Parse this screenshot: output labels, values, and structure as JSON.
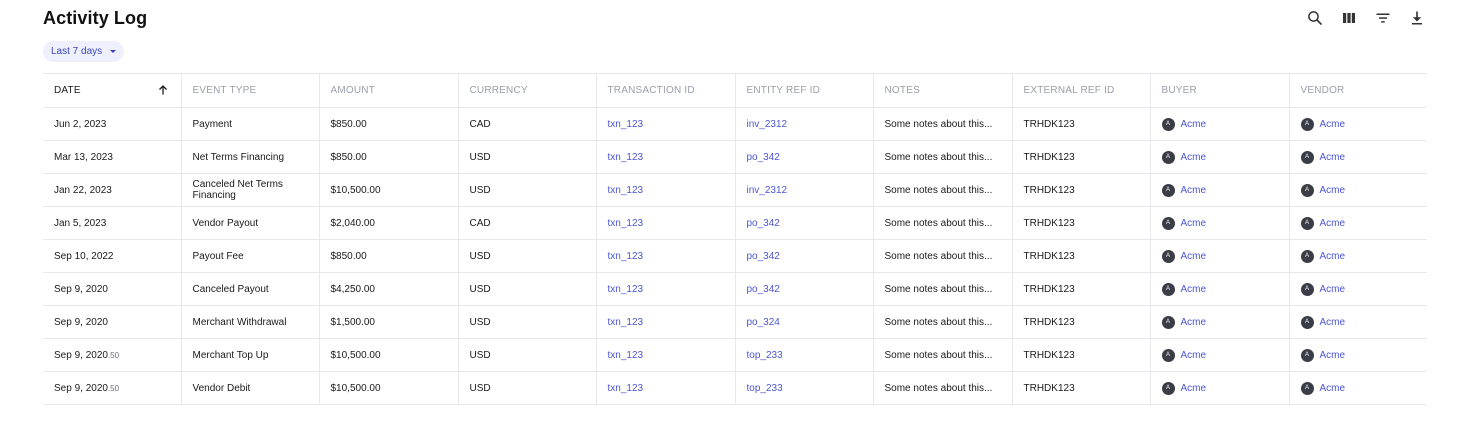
{
  "header": {
    "title": "Activity Log"
  },
  "toolbar": {
    "icons": [
      "search-icon",
      "columns-icon",
      "filter-icon",
      "download-icon"
    ]
  },
  "filter": {
    "label": "Last 7 days"
  },
  "columns": [
    "DATE",
    "EVENT TYPE",
    "AMOUNT",
    "CURRENCY",
    "TRANSACTION ID",
    "ENTITY REF ID",
    "NOTES",
    "EXTERNAL REF ID",
    "BUYER",
    "VENDOR"
  ],
  "rows": [
    {
      "date": "Jun 2, 2023",
      "date_suffix": "",
      "event": "Payment",
      "amount": "$850.00",
      "currency": "CAD",
      "txn": "txn_123",
      "entity": "inv_2312",
      "notes": "Some notes about this...",
      "ext": "TRHDK123",
      "buyer": "Acme",
      "buyer_initial": "A",
      "vendor": "Acme",
      "vendor_initial": "A"
    },
    {
      "date": "Mar 13, 2023",
      "date_suffix": "",
      "event": "Net Terms Financing",
      "amount": "$850.00",
      "currency": "USD",
      "txn": "txn_123",
      "entity": "po_342",
      "notes": "Some notes about this...",
      "ext": "TRHDK123",
      "buyer": "Acme",
      "buyer_initial": "A",
      "vendor": "Acme",
      "vendor_initial": "A"
    },
    {
      "date": "Jan 22, 2023",
      "date_suffix": "",
      "event": "Canceled Net Terms Financing",
      "amount": "$10,500.00",
      "currency": "USD",
      "txn": "txn_123",
      "entity": "inv_2312",
      "notes": "Some notes about this...",
      "ext": "TRHDK123",
      "buyer": "Acme",
      "buyer_initial": "A",
      "vendor": "Acme",
      "vendor_initial": "A"
    },
    {
      "date": "Jan 5, 2023",
      "date_suffix": "",
      "event": "Vendor Payout",
      "amount": "$2,040.00",
      "currency": "CAD",
      "txn": "txn_123",
      "entity": "po_342",
      "notes": "Some notes about this...",
      "ext": "TRHDK123",
      "buyer": "Acme",
      "buyer_initial": "A",
      "vendor": "Acme",
      "vendor_initial": "A"
    },
    {
      "date": "Sep 10, 2022",
      "date_suffix": "",
      "event": "Payout Fee",
      "amount": "$850.00",
      "currency": "USD",
      "txn": "txn_123",
      "entity": "po_342",
      "notes": "Some notes about this...",
      "ext": "TRHDK123",
      "buyer": "Acme",
      "buyer_initial": "A",
      "vendor": "Acme",
      "vendor_initial": "A"
    },
    {
      "date": "Sep 9, 2020",
      "date_suffix": "",
      "event": "Canceled Payout",
      "amount": "$4,250.00",
      "currency": "USD",
      "txn": "txn_123",
      "entity": "po_342",
      "notes": "Some notes about this...",
      "ext": "TRHDK123",
      "buyer": "Acme",
      "buyer_initial": "A",
      "vendor": "Acme",
      "vendor_initial": "A"
    },
    {
      "date": "Sep 9, 2020",
      "date_suffix": "",
      "event": "Merchant Withdrawal",
      "amount": "$1,500.00",
      "currency": "USD",
      "txn": "txn_123",
      "entity": "po_324",
      "notes": "Some notes about this...",
      "ext": "TRHDK123",
      "buyer": "Acme",
      "buyer_initial": "A",
      "vendor": "Acme",
      "vendor_initial": "A"
    },
    {
      "date": "Sep 9, 2020",
      "date_suffix": ".50",
      "event": "Merchant Top Up",
      "amount": "$10,500.00",
      "currency": "USD",
      "txn": "txn_123",
      "entity": "top_233",
      "notes": "Some notes about this...",
      "ext": "TRHDK123",
      "buyer": "Acme",
      "buyer_initial": "A",
      "vendor": "Acme",
      "vendor_initial": "A"
    },
    {
      "date": "Sep 9, 2020",
      "date_suffix": ".50",
      "event": "Vendor Debit",
      "amount": "$10,500.00",
      "currency": "USD",
      "txn": "txn_123",
      "entity": "top_233",
      "notes": "Some notes about this...",
      "ext": "TRHDK123",
      "buyer": "Acme",
      "buyer_initial": "A",
      "vendor": "Acme",
      "vendor_initial": "A"
    }
  ]
}
